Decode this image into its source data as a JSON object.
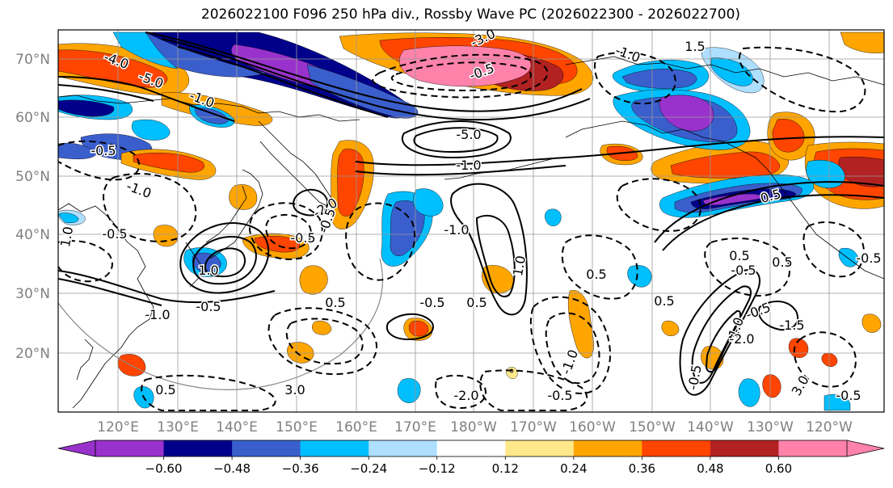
{
  "title": "2026022100 F096 250 hPa div., Rossby Wave PC (2026022300 - 2026022700)",
  "map": {
    "lat_labels": [
      "70°N",
      "60°N",
      "50°N",
      "40°N",
      "30°N",
      "20°N"
    ],
    "lon_labels": [
      "120°E",
      "130°E",
      "140°E",
      "150°E",
      "160°E",
      "170°E",
      "180°W",
      "170°W",
      "160°W",
      "150°W",
      "140°W",
      "130°W",
      "120°W"
    ],
    "contour_labels": [
      "-4.0",
      "-5.0",
      "-3.0",
      "-1.0",
      "-5.0",
      "-1.0",
      "1.5",
      "-0.5",
      "-1.0",
      "-0.5",
      "1.0",
      "-1.0",
      "-0.5",
      "-0.5",
      "0.5",
      "-2.0",
      "1.0",
      "-0.5",
      "-1.0",
      "-0.5",
      "-1.0",
      "0.5",
      "3.0",
      "-2.0",
      "-0.5",
      "-0.5",
      "0.5",
      "1.0",
      "0.5",
      "-1.0",
      "0.5",
      "-0.5",
      "-0.5",
      "-1.5",
      "3.0",
      "-0.5",
      "-0.5",
      "-1.0",
      "0.5",
      "0.5",
      "0.5",
      "-2.0",
      "-0.5"
    ]
  },
  "colorbar": {
    "colors": [
      "#9932cc",
      "#00008b",
      "#3a5fcd",
      "#00bfff",
      "#aedfff",
      "#ffffff",
      "#ffe88a",
      "#ffa500",
      "#ff4500",
      "#b22222",
      "#ff82ab"
    ],
    "ticks": [
      "−0.60",
      "−0.48",
      "−0.36",
      "−0.24",
      "−0.12",
      "0.12",
      "0.24",
      "0.36",
      "0.48",
      "0.60"
    ]
  },
  "fill_colors": {
    "purple": "#9932cc",
    "navy": "#00008b",
    "royal": "#3a5fcd",
    "cyan": "#00bfff",
    "lightblue": "#aedfff",
    "yellow": "#ffe88a",
    "orange": "#ffa500",
    "red": "#ff4500",
    "darkred": "#b22222",
    "pink": "#ff82ab"
  }
}
